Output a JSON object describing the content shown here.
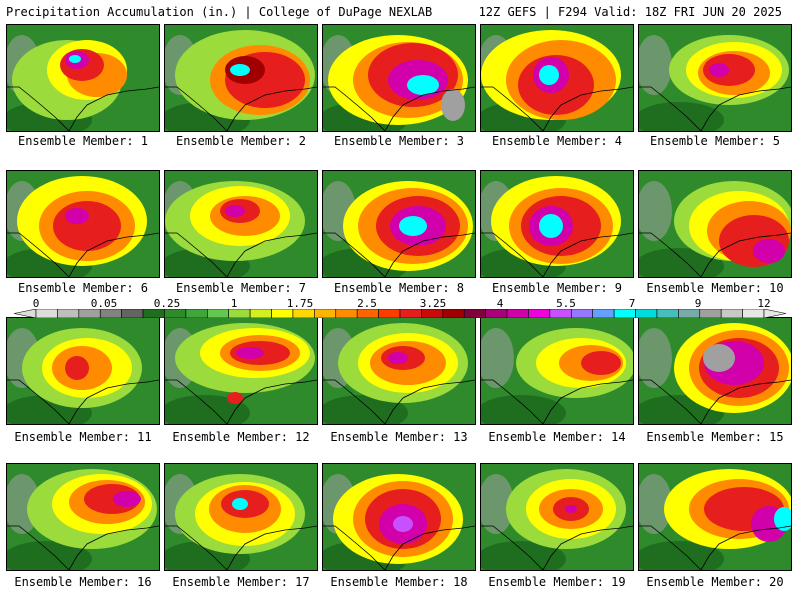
{
  "header": {
    "left": "Precipitation Accumulation (in.) | College of DuPage NEXLAB",
    "right": "12Z GEFS | F294 Valid: 18Z FRI JUN 20 2025"
  },
  "members": [
    {
      "label": "Ensemble Member: 1"
    },
    {
      "label": "Ensemble Member: 2"
    },
    {
      "label": "Ensemble Member: 3"
    },
    {
      "label": "Ensemble Member: 4"
    },
    {
      "label": "Ensemble Member: 5"
    },
    {
      "label": "Ensemble Member: 6"
    },
    {
      "label": "Ensemble Member: 7"
    },
    {
      "label": "Ensemble Member: 8"
    },
    {
      "label": "Ensemble Member: 9"
    },
    {
      "label": "Ensemble Member: 10"
    },
    {
      "label": "Ensemble Member: 11"
    },
    {
      "label": "Ensemble Member: 12"
    },
    {
      "label": "Ensemble Member: 13"
    },
    {
      "label": "Ensemble Member: 14"
    },
    {
      "label": "Ensemble Member: 15"
    },
    {
      "label": "Ensemble Member: 16"
    },
    {
      "label": "Ensemble Member: 17"
    },
    {
      "label": "Ensemble Member: 18"
    },
    {
      "label": "Ensemble Member: 19"
    },
    {
      "label": "Ensemble Member: 20"
    }
  ],
  "colorbar": {
    "tick_labels": [
      "0",
      "0.05",
      "0.25",
      "1",
      "1.75",
      "2.5",
      "3.25",
      "4",
      "5.5",
      "7",
      "9",
      "12"
    ],
    "colors": [
      "#dcdcdc",
      "#bebebe",
      "#a0a0a0",
      "#828282",
      "#646464",
      "#1f6e1f",
      "#2e8a2a",
      "#3ea63a",
      "#64c850",
      "#9bdc3c",
      "#d2f01e",
      "#ffff00",
      "#ffd700",
      "#ffb400",
      "#ff8c00",
      "#ff6400",
      "#ff3c00",
      "#e61e1e",
      "#c80a0a",
      "#a00000",
      "#82003c",
      "#aa0078",
      "#d200aa",
      "#f000dc",
      "#c850ff",
      "#9678ff",
      "#64a0ff",
      "#00ffff",
      "#00dcdc",
      "#46bebe",
      "#78aaaa",
      "#a0a0a0",
      "#c8c8c8",
      "#e6e6e6"
    ]
  }
}
